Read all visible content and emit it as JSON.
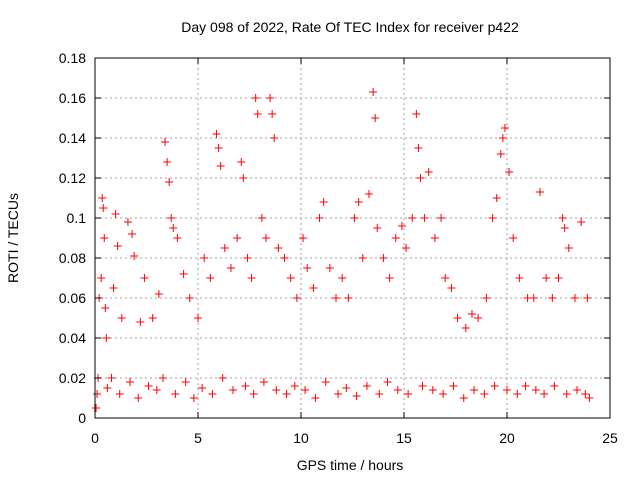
{
  "chart_data": {
    "type": "scatter",
    "title": "Day 098 of 2022, Rate Of TEC Index for receiver p422",
    "xlabel": "GPS time / hours",
    "ylabel": "ROTI / TECUs",
    "xlim": [
      0,
      25
    ],
    "ylim": [
      0,
      0.18
    ],
    "x_ticks": [
      0,
      5,
      10,
      15,
      20,
      25
    ],
    "y_ticks": [
      0,
      0.02,
      0.04,
      0.06,
      0.08,
      0.1,
      0.12,
      0.14,
      0.16,
      0.18
    ],
    "x_tick_labels": [
      "0",
      "5",
      "10",
      "15",
      "20",
      "25"
    ],
    "y_tick_labels": [
      "0",
      "0.02",
      "0.04",
      "0.06",
      "0.08",
      "0.1",
      "0.12",
      "0.14",
      "0.16",
      "0.18"
    ],
    "grid": true,
    "marker": "plus",
    "marker_color": "#ff0000",
    "series": [
      {
        "points": [
          [
            0.05,
            0.005
          ],
          [
            0.1,
            0.012
          ],
          [
            0.15,
            0.02
          ],
          [
            0.2,
            0.06
          ],
          [
            0.3,
            0.07
          ],
          [
            0.35,
            0.11
          ],
          [
            0.4,
            0.105
          ],
          [
            0.45,
            0.09
          ],
          [
            0.5,
            0.055
          ],
          [
            0.55,
            0.04
          ],
          [
            0.8,
            0.02
          ],
          [
            0.9,
            0.065
          ],
          [
            1.0,
            0.102
          ],
          [
            1.1,
            0.086
          ],
          [
            1.3,
            0.05
          ],
          [
            1.6,
            0.098
          ],
          [
            1.8,
            0.092
          ],
          [
            1.9,
            0.081
          ],
          [
            2.2,
            0.048
          ],
          [
            2.4,
            0.07
          ],
          [
            2.8,
            0.05
          ],
          [
            3.1,
            0.062
          ],
          [
            3.4,
            0.138
          ],
          [
            3.5,
            0.128
          ],
          [
            3.6,
            0.118
          ],
          [
            3.7,
            0.1
          ],
          [
            3.8,
            0.095
          ],
          [
            4.0,
            0.09
          ],
          [
            4.3,
            0.072
          ],
          [
            4.6,
            0.06
          ],
          [
            5.0,
            0.05
          ],
          [
            5.3,
            0.08
          ],
          [
            5.6,
            0.07
          ],
          [
            5.9,
            0.142
          ],
          [
            6.0,
            0.135
          ],
          [
            6.1,
            0.126
          ],
          [
            6.3,
            0.085
          ],
          [
            6.6,
            0.075
          ],
          [
            6.9,
            0.09
          ],
          [
            7.1,
            0.128
          ],
          [
            7.2,
            0.12
          ],
          [
            7.4,
            0.08
          ],
          [
            7.6,
            0.07
          ],
          [
            7.8,
            0.16
          ],
          [
            7.9,
            0.152
          ],
          [
            8.1,
            0.1
          ],
          [
            8.3,
            0.09
          ],
          [
            8.5,
            0.16
          ],
          [
            8.6,
            0.152
          ],
          [
            8.7,
            0.14
          ],
          [
            8.9,
            0.085
          ],
          [
            9.2,
            0.08
          ],
          [
            9.5,
            0.07
          ],
          [
            9.8,
            0.06
          ],
          [
            10.1,
            0.09
          ],
          [
            10.3,
            0.075
          ],
          [
            10.6,
            0.065
          ],
          [
            10.9,
            0.1
          ],
          [
            11.1,
            0.108
          ],
          [
            11.4,
            0.075
          ],
          [
            11.7,
            0.06
          ],
          [
            12.0,
            0.07
          ],
          [
            12.3,
            0.06
          ],
          [
            12.6,
            0.1
          ],
          [
            12.8,
            0.108
          ],
          [
            13.0,
            0.08
          ],
          [
            13.3,
            0.112
          ],
          [
            13.5,
            0.163
          ],
          [
            13.6,
            0.15
          ],
          [
            13.7,
            0.095
          ],
          [
            14.0,
            0.08
          ],
          [
            14.3,
            0.07
          ],
          [
            14.6,
            0.09
          ],
          [
            14.9,
            0.096
          ],
          [
            15.1,
            0.085
          ],
          [
            15.4,
            0.1
          ],
          [
            15.6,
            0.152
          ],
          [
            15.7,
            0.135
          ],
          [
            15.8,
            0.12
          ],
          [
            16.0,
            0.1
          ],
          [
            16.2,
            0.123
          ],
          [
            16.5,
            0.09
          ],
          [
            16.8,
            0.1
          ],
          [
            17.0,
            0.07
          ],
          [
            17.3,
            0.065
          ],
          [
            17.6,
            0.05
          ],
          [
            18.0,
            0.045
          ],
          [
            18.3,
            0.052
          ],
          [
            18.6,
            0.05
          ],
          [
            19.0,
            0.06
          ],
          [
            19.3,
            0.1
          ],
          [
            19.5,
            0.11
          ],
          [
            19.7,
            0.132
          ],
          [
            19.8,
            0.14
          ],
          [
            19.9,
            0.145
          ],
          [
            20.1,
            0.123
          ],
          [
            20.3,
            0.09
          ],
          [
            20.6,
            0.07
          ],
          [
            21.0,
            0.06
          ],
          [
            21.3,
            0.06
          ],
          [
            21.6,
            0.113
          ],
          [
            21.9,
            0.07
          ],
          [
            22.2,
            0.06
          ],
          [
            22.5,
            0.07
          ],
          [
            22.7,
            0.1
          ],
          [
            22.8,
            0.095
          ],
          [
            23.0,
            0.085
          ],
          [
            23.3,
            0.06
          ],
          [
            23.6,
            0.098
          ],
          [
            23.9,
            0.06
          ],
          [
            0.6,
            0.015
          ],
          [
            1.2,
            0.012
          ],
          [
            1.7,
            0.018
          ],
          [
            2.1,
            0.01
          ],
          [
            2.6,
            0.016
          ],
          [
            3.0,
            0.014
          ],
          [
            3.3,
            0.02
          ],
          [
            3.9,
            0.012
          ],
          [
            4.4,
            0.018
          ],
          [
            4.8,
            0.01
          ],
          [
            5.2,
            0.015
          ],
          [
            5.7,
            0.012
          ],
          [
            6.2,
            0.02
          ],
          [
            6.7,
            0.014
          ],
          [
            7.3,
            0.016
          ],
          [
            7.7,
            0.012
          ],
          [
            8.2,
            0.018
          ],
          [
            8.8,
            0.014
          ],
          [
            9.3,
            0.012
          ],
          [
            9.7,
            0.016
          ],
          [
            10.2,
            0.014
          ],
          [
            10.7,
            0.01
          ],
          [
            11.2,
            0.018
          ],
          [
            11.8,
            0.012
          ],
          [
            12.2,
            0.015
          ],
          [
            12.7,
            0.011
          ],
          [
            13.2,
            0.016
          ],
          [
            13.8,
            0.012
          ],
          [
            14.2,
            0.018
          ],
          [
            14.7,
            0.014
          ],
          [
            15.2,
            0.012
          ],
          [
            15.9,
            0.016
          ],
          [
            16.4,
            0.014
          ],
          [
            16.9,
            0.012
          ],
          [
            17.4,
            0.016
          ],
          [
            17.9,
            0.01
          ],
          [
            18.4,
            0.014
          ],
          [
            18.9,
            0.012
          ],
          [
            19.4,
            0.016
          ],
          [
            20.0,
            0.014
          ],
          [
            20.5,
            0.012
          ],
          [
            20.9,
            0.016
          ],
          [
            21.4,
            0.014
          ],
          [
            21.8,
            0.012
          ],
          [
            22.3,
            0.016
          ],
          [
            22.9,
            0.012
          ],
          [
            23.4,
            0.014
          ],
          [
            23.8,
            0.012
          ],
          [
            24.0,
            0.01
          ]
        ]
      }
    ]
  }
}
